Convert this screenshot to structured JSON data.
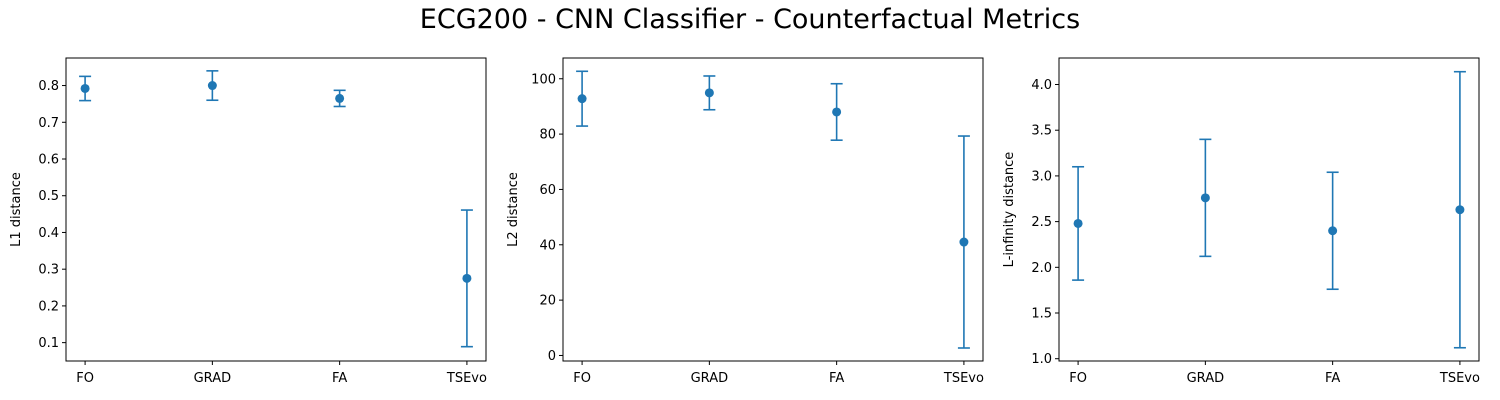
{
  "figure": {
    "title": "ECG200 - CNN Classifier - Counterfactual Metrics",
    "marker_color": "#1f77b4"
  },
  "chart_data": [
    {
      "type": "scatter",
      "categories": [
        "FO",
        "GRAD",
        "FA",
        "TSEvo"
      ],
      "values": [
        0.792,
        0.8,
        0.765,
        0.275
      ],
      "errors": [
        0.033,
        0.04,
        0.022,
        0.186
      ],
      "ylabel": "L1 distance",
      "xlabel": "",
      "ylim": [
        0.05,
        0.875
      ],
      "yticks": [
        0.1,
        0.2,
        0.3,
        0.4,
        0.5,
        0.6,
        0.7,
        0.8
      ],
      "grid": false
    },
    {
      "type": "scatter",
      "categories": [
        "FO",
        "GRAD",
        "FA",
        "TSEvo"
      ],
      "values": [
        92.8,
        94.9,
        88.0,
        41.0
      ],
      "errors": [
        9.9,
        6.1,
        10.2,
        38.3
      ],
      "ylabel": "L2 distance",
      "xlabel": "",
      "ylim": [
        -2.0,
        107.5
      ],
      "yticks": [
        0,
        20,
        40,
        60,
        80,
        100
      ],
      "grid": false
    },
    {
      "type": "scatter",
      "categories": [
        "FO",
        "GRAD",
        "FA",
        "TSEvo"
      ],
      "values": [
        2.48,
        2.76,
        2.4,
        2.63
      ],
      "errors": [
        0.62,
        0.64,
        0.64,
        1.51
      ],
      "ylabel": "L-infinity distance",
      "xlabel": "",
      "ylim": [
        0.975,
        4.29
      ],
      "yticks": [
        1.0,
        1.5,
        2.0,
        2.5,
        3.0,
        3.5,
        4.0
      ],
      "grid": false
    }
  ]
}
